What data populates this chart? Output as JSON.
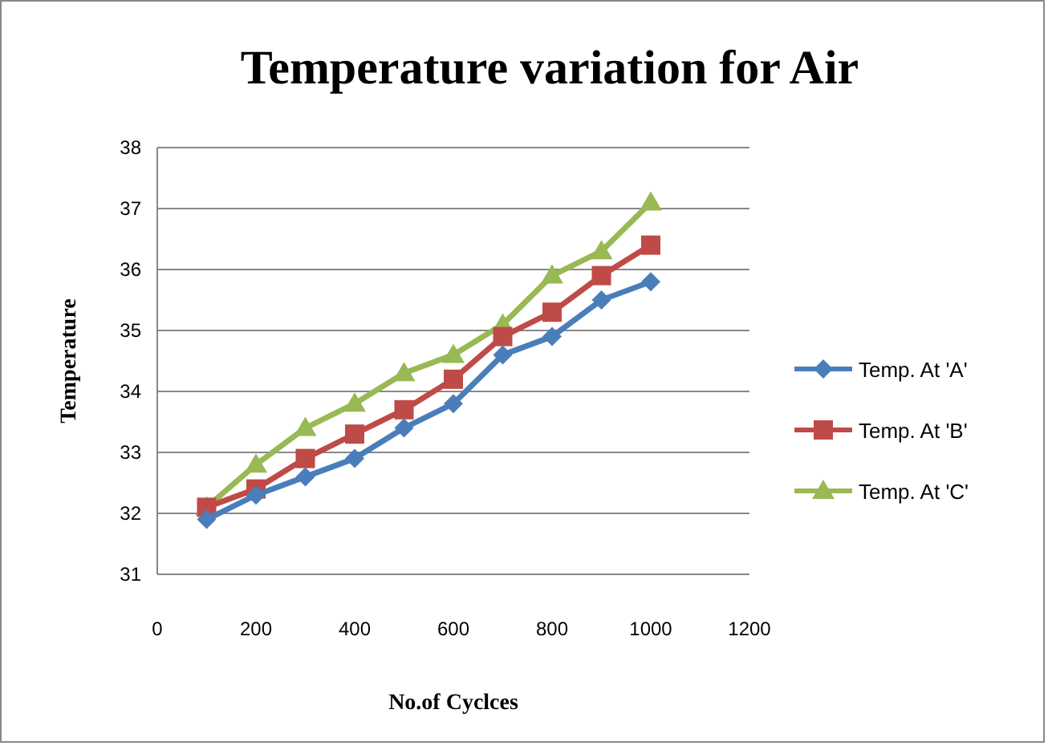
{
  "chart_data": {
    "type": "line",
    "title": "Temperature variation for Air",
    "xlabel": "No.of Cyclces",
    "ylabel": "Temperature",
    "x": [
      100,
      200,
      300,
      400,
      500,
      600,
      700,
      800,
      900,
      1000
    ],
    "series": [
      {
        "name": "Temp. At 'A'",
        "color": "#4a7ebb",
        "marker": "diamond",
        "values": [
          31.9,
          32.3,
          32.6,
          32.9,
          33.4,
          33.8,
          34.6,
          34.9,
          35.5,
          35.8
        ]
      },
      {
        "name": "Temp. At 'B'",
        "color": "#be4b48",
        "marker": "square",
        "values": [
          32.1,
          32.4,
          32.9,
          33.3,
          33.7,
          34.2,
          34.9,
          35.3,
          35.9,
          36.4
        ]
      },
      {
        "name": "Temp. At 'C'",
        "color": "#98b954",
        "marker": "triangle",
        "values": [
          32.1,
          32.8,
          33.4,
          33.8,
          34.3,
          34.6,
          35.1,
          35.9,
          36.3,
          37.1
        ]
      }
    ],
    "xlim": [
      0,
      1200
    ],
    "xticks": [
      0,
      200,
      400,
      600,
      800,
      1000,
      1200
    ],
    "ylim": [
      31,
      38
    ],
    "yticks": [
      31,
      32,
      33,
      34,
      35,
      36,
      37,
      38
    ],
    "grid": "y",
    "legend": "right"
  }
}
